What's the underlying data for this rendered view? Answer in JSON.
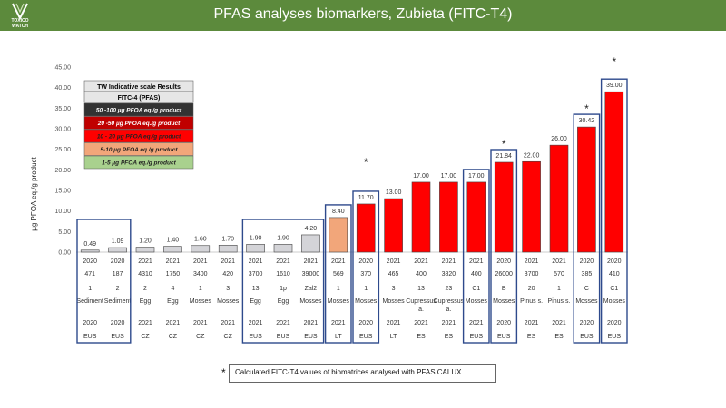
{
  "header": {
    "title": "PFAS analyses biomarkers, Zubieta (FITC-T4)",
    "logo_line1": "TOXICO",
    "logo_line2": "WATCH"
  },
  "colors": {
    "header_bg": "#5c8a3c",
    "grey": "#d4d4d8",
    "orange": "#f2a67a",
    "red": "#ff0000",
    "box": "#2e4a8c"
  },
  "legend": {
    "title": "TW Indicative scale Results",
    "subtitle": "FITC-4 (PFAS)",
    "items": [
      {
        "label": "50 -100 µg PFOA eq./g product",
        "color": "#333333",
        "text_color": "#ffffff"
      },
      {
        "label": "20 -50 µg PFOA eq./g product",
        "color": "#c00000",
        "text_color": "#ffffff"
      },
      {
        "label": "10 - 20 µg PFOA eq./g product",
        "color": "#ff0000",
        "text_color": "#222222"
      },
      {
        "label": "5-10 µg PFOA eq./g product",
        "color": "#f2a67a",
        "text_color": "#222222"
      },
      {
        "label": "1-5 µg PFOA eq./g product",
        "color": "#a9d18e",
        "text_color": "#222222"
      }
    ]
  },
  "footnote": {
    "star": "*",
    "text": "Calculated FITC-T4 values of biomatrices analysed with PFAS CALUX"
  },
  "chart_data": {
    "type": "bar",
    "ylabel": "µg PFOA eq./g product",
    "ylim": [
      0,
      45
    ],
    "yticks": [
      "0.00",
      "5.00",
      "10.00",
      "15.00",
      "20.00",
      "25.00",
      "30.00",
      "35.00",
      "40.00",
      "45.00"
    ],
    "values": [
      0.49,
      1.09,
      1.2,
      1.4,
      1.6,
      1.7,
      1.9,
      1.9,
      4.2,
      8.4,
      11.7,
      13.0,
      17.0,
      17.0,
      17.0,
      21.84,
      22.0,
      26.0,
      30.42,
      39.0
    ],
    "value_labels": [
      "0.49",
      "1.09",
      "1.20",
      "1.40",
      "1.60",
      "1.70",
      "1.90",
      "1.90",
      "4.20",
      "8.40",
      "11.70",
      "13.00",
      "17.00",
      "17.00",
      "17.00",
      "21.84",
      "22.00",
      "26.00",
      "30.42",
      "39.00"
    ],
    "colors": [
      "grey",
      "grey",
      "grey",
      "grey",
      "grey",
      "grey",
      "grey",
      "grey",
      "grey",
      "orange",
      "red",
      "red",
      "red",
      "red",
      "red",
      "red",
      "red",
      "red",
      "red",
      "red"
    ],
    "starred": [
      false,
      false,
      false,
      false,
      false,
      false,
      false,
      false,
      false,
      false,
      true,
      false,
      false,
      false,
      false,
      true,
      false,
      false,
      true,
      true
    ],
    "rows": [
      [
        "2020",
        "2020",
        "2021",
        "2021",
        "2021",
        "2021",
        "2021",
        "2021",
        "2021",
        "2021",
        "2020",
        "2021",
        "2021",
        "2021",
        "2021",
        "2020",
        "2021",
        "2021",
        "2020",
        "2020"
      ],
      [
        "471",
        "187",
        "4310",
        "1750",
        "3400",
        "420",
        "3700",
        "1610",
        "39000",
        "569",
        "370",
        "465",
        "400",
        "3820",
        "400",
        "26000",
        "3700",
        "570",
        "385",
        "410"
      ],
      [
        "1",
        "2",
        "2",
        "4",
        "1",
        "3",
        "13",
        "1p",
        "Zal2",
        "1",
        "1",
        "3",
        "13",
        "23",
        "C1",
        "B",
        "20",
        "1",
        "C",
        "C1"
      ],
      [
        "Sediment",
        "Sediment",
        "Egg",
        "Egg",
        "Mosses",
        "Mosses",
        "Egg",
        "Egg",
        "Mosses",
        "Mosses",
        "Mosses",
        "Mosses",
        "Cupressus a.",
        "Cupressus a.",
        "Mosses",
        "Mosses",
        "Pinus s.",
        "Pinus s.",
        "Mosses",
        "Mosses"
      ],
      [
        "2020",
        "2020",
        "2021",
        "2021",
        "2021",
        "2021",
        "2021",
        "2021",
        "2021",
        "2021",
        "2020",
        "2021",
        "2021",
        "2021",
        "2021",
        "2020",
        "2021",
        "2021",
        "2020",
        "2020"
      ],
      [
        "EUS",
        "EUS",
        "CZ",
        "CZ",
        "CZ",
        "CZ",
        "EUS",
        "EUS",
        "EUS",
        "LT",
        "EUS",
        "LT",
        "ES",
        "ES",
        "EUS",
        "EUS",
        "ES",
        "ES",
        "EUS",
        "EUS"
      ]
    ],
    "groups": [
      [
        0,
        1
      ],
      [
        6,
        8
      ],
      [
        9,
        9
      ],
      [
        10,
        10
      ],
      [
        14,
        14
      ],
      [
        15,
        15
      ],
      [
        18,
        18
      ],
      [
        19,
        19
      ]
    ]
  }
}
